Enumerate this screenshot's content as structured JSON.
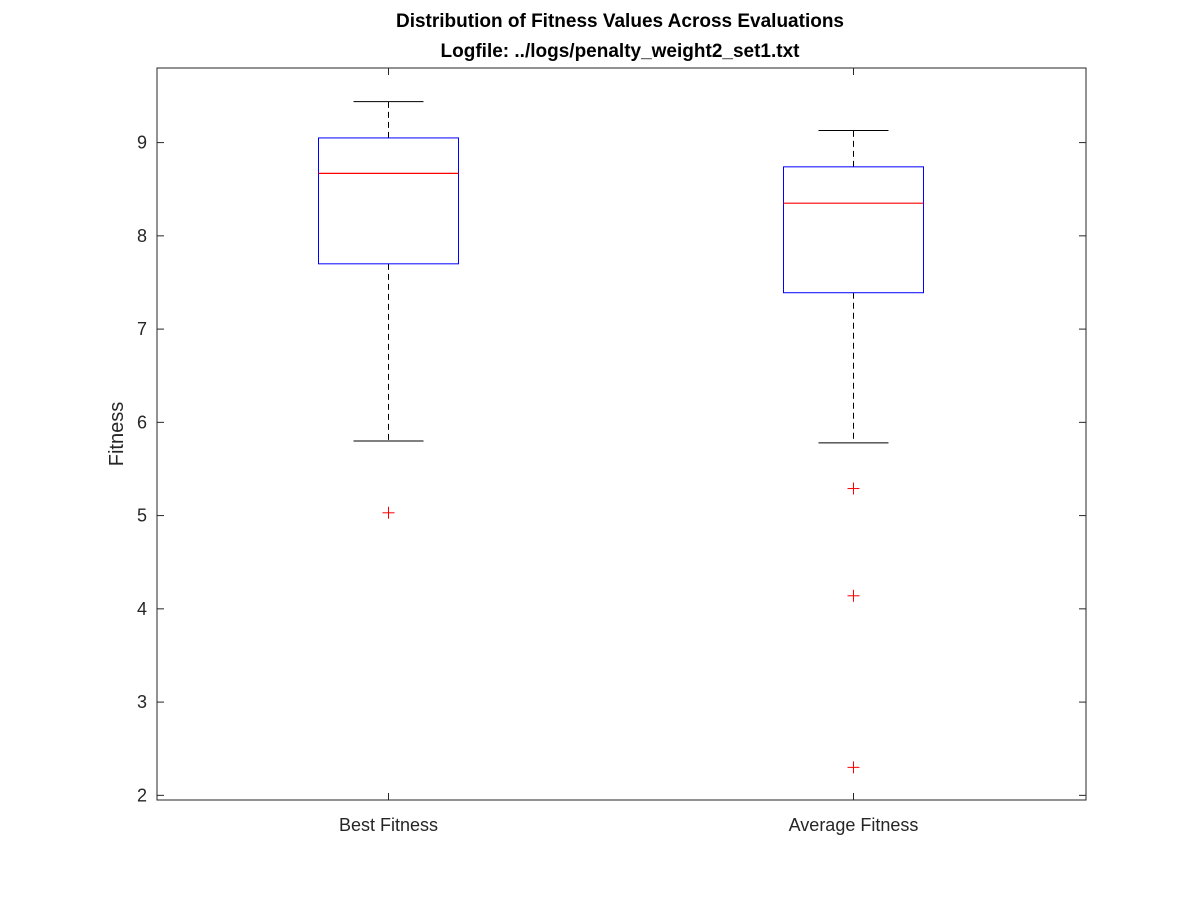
{
  "chart_data": {
    "type": "box",
    "title": "Distribution of Fitness Values Across Evaluations",
    "subtitle": "Logfile: ../logs/penalty_weight2_set1.txt",
    "xlabel": "",
    "ylabel": "Fitness",
    "ylim": [
      1.95,
      9.8
    ],
    "yticks": [
      2,
      3,
      4,
      5,
      6,
      7,
      8,
      9
    ],
    "categories": [
      "Best Fitness",
      "Average Fitness"
    ],
    "boxes": [
      {
        "q1": 7.7,
        "median": 8.67,
        "q3": 9.05,
        "whisker_low": 5.8,
        "whisker_high": 9.44,
        "outliers": [
          5.03
        ]
      },
      {
        "q1": 7.39,
        "median": 8.35,
        "q3": 8.74,
        "whisker_low": 5.78,
        "whisker_high": 9.13,
        "outliers": [
          5.29,
          4.14,
          2.3
        ]
      }
    ],
    "grid": false,
    "colors": {
      "box": "#0000ff",
      "median": "#ff0000",
      "whisker": "#000000",
      "outlier": "#ff0000",
      "axes": "#262626"
    }
  }
}
